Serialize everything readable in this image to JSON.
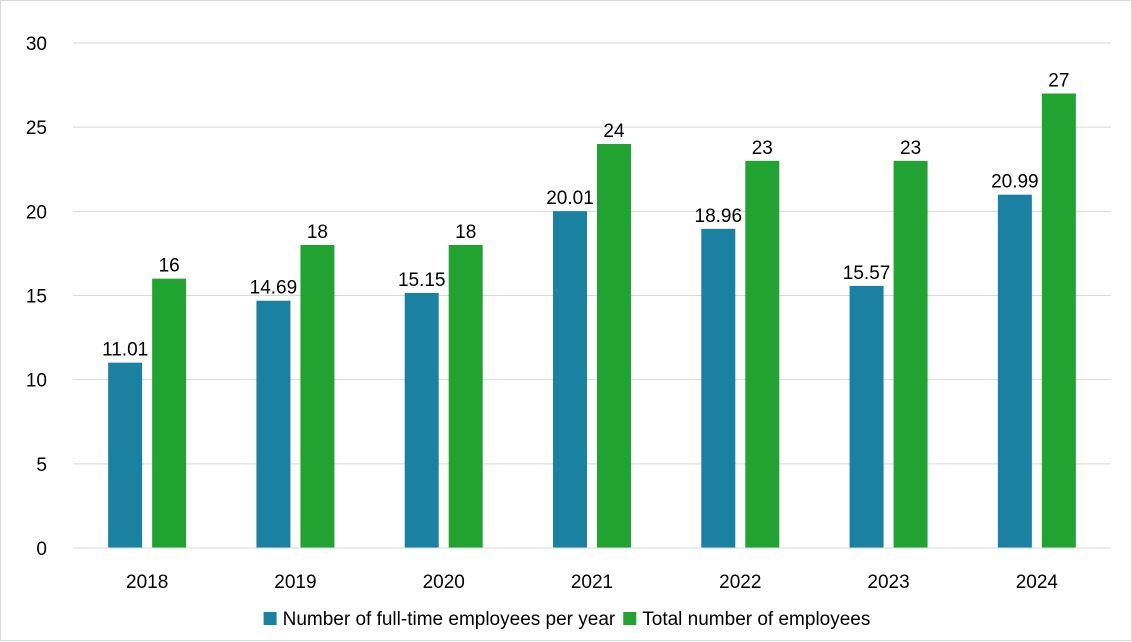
{
  "chart_data": {
    "type": "bar",
    "title": "",
    "xlabel": "",
    "ylabel": "",
    "categories": [
      "2018",
      "2019",
      "2020",
      "2021",
      "2022",
      "2023",
      "2024"
    ],
    "series": [
      {
        "name": "Number of full-time employees per year",
        "color": "#1b81a3",
        "values": [
          11.01,
          14.69,
          15.15,
          20.01,
          18.96,
          15.57,
          20.99
        ],
        "labels": [
          "11.01",
          "14.69",
          "15.15",
          "20.01",
          "18.96",
          "15.57",
          "20.99"
        ]
      },
      {
        "name": "Total number of employees",
        "color": "#21a331",
        "values": [
          16,
          18,
          18,
          24,
          23,
          23,
          27
        ],
        "labels": [
          "16",
          "18",
          "18",
          "24",
          "23",
          "23",
          "27"
        ]
      }
    ],
    "ylim": [
      0,
      30
    ],
    "yticks": [
      0,
      5,
      10,
      15,
      20,
      25,
      30
    ],
    "ytick_labels": [
      "0",
      "5",
      "10",
      "15",
      "20",
      "25",
      "30"
    ],
    "grid": true,
    "legend_position": "bottom"
  }
}
